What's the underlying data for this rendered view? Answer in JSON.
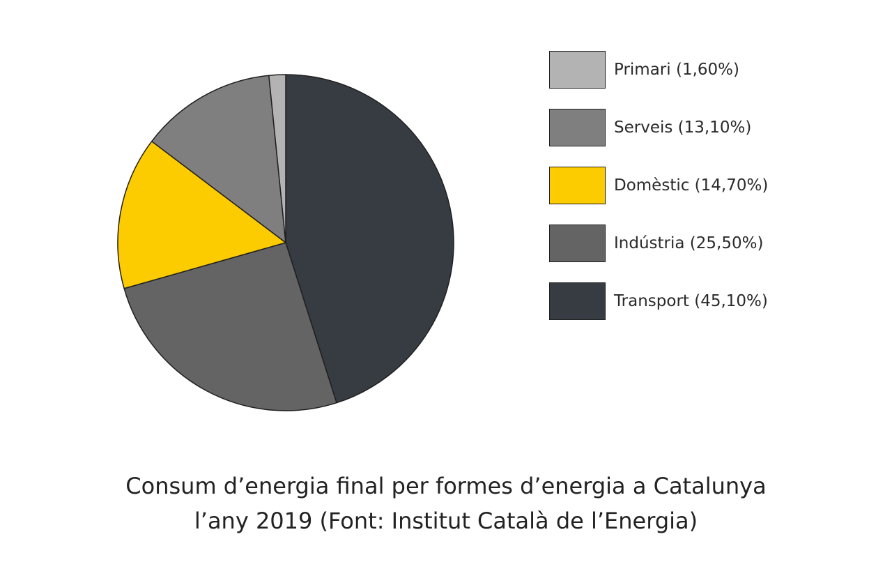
{
  "chart_data": {
    "type": "pie",
    "title_lines": [
      "Consum d’energia final per formes d’energia a Catalunya",
      "l’any 2019 (Font: Institut Català de l’Energia)"
    ],
    "slices": [
      {
        "name": "Transport",
        "value": 45.1,
        "label": "Transport (45,10%)",
        "color": "#373c42"
      },
      {
        "name": "Indústria",
        "value": 25.5,
        "label": "Indústria (25,50%)",
        "color": "#646464"
      },
      {
        "name": "Domèstic",
        "value": 14.7,
        "label": "Domèstic (14,70%)",
        "color": "#fccb00"
      },
      {
        "name": "Serveis",
        "value": 13.1,
        "label": "Serveis (13,10%)",
        "color": "#7f7f7f"
      },
      {
        "name": "Primari",
        "value": 1.6,
        "label": "Primari (1,60%)",
        "color": "#b3b3b3"
      }
    ],
    "legend_order": [
      "Primari",
      "Serveis",
      "Domèstic",
      "Indústria",
      "Transport"
    ],
    "start": "top",
    "direction": "clockwise",
    "legend_position": "right"
  }
}
